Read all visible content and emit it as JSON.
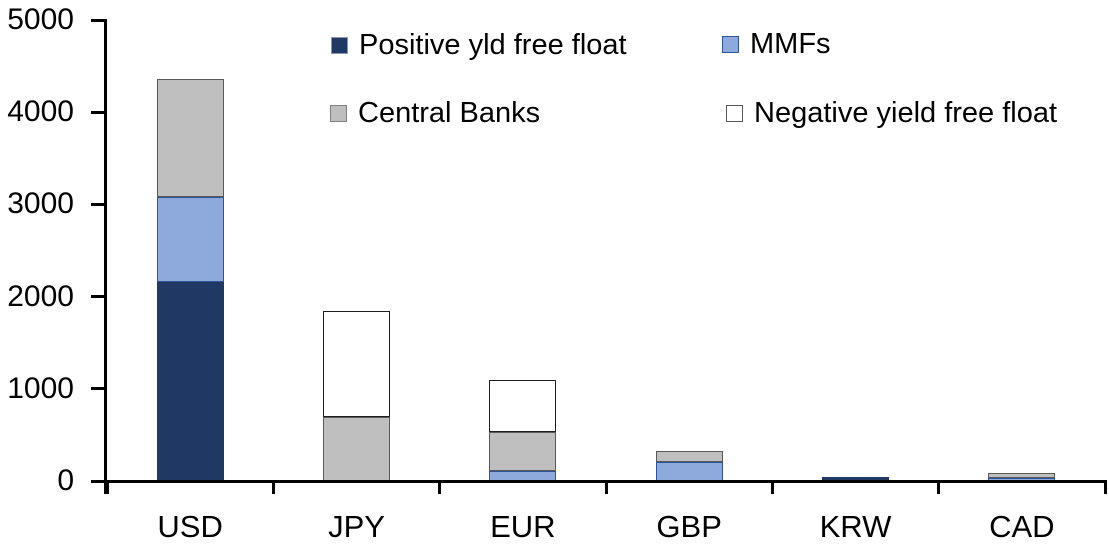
{
  "chart_data": {
    "type": "bar",
    "stacked": true,
    "title": "",
    "xlabel": "",
    "ylabel": "",
    "categories": [
      "USD",
      "JPY",
      "EUR",
      "GBP",
      "KRW",
      "CAD"
    ],
    "series": [
      {
        "name": "Positive yld free float",
        "color": "#1F3864",
        "border": "#1F3864",
        "swatch_border": "#8C96A9",
        "values": [
          2155,
          0,
          0,
          0,
          45,
          0
        ]
      },
      {
        "name": "MMFs",
        "color": "#8EA9DB",
        "border": "#2E5597",
        "swatch_border": "#2E5597",
        "values": [
          930,
          0,
          105,
          210,
          0,
          35
        ]
      },
      {
        "name": "Central Banks",
        "color": "#BFBFBF",
        "border": "#595959",
        "swatch_border": "#808080",
        "values": [
          1275,
          695,
          425,
          120,
          0,
          50
        ]
      },
      {
        "name": "Negative yield free float",
        "color": "#FFFFFF",
        "border": "#1F1F1F",
        "swatch_border": "#595959",
        "values": [
          0,
          1145,
          570,
          0,
          0,
          0
        ]
      }
    ],
    "totals": {
      "USD": 4360,
      "JPY": 1840,
      "EUR": 1100,
      "GBP": 330,
      "KRW": 45,
      "CAD": 85
    },
    "ylim": [
      0,
      5000
    ],
    "yticks": [
      0,
      1000,
      2000,
      3000,
      4000,
      5000
    ],
    "grid": false,
    "legend_position": "top",
    "axis_color": "#000000",
    "text_color": "#000000"
  }
}
